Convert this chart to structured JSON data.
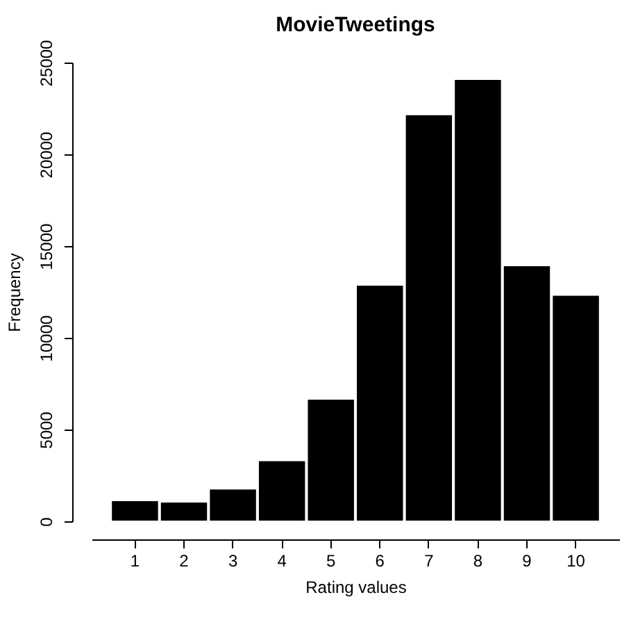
{
  "chart_data": {
    "type": "bar",
    "title": "MovieTweetings",
    "xlabel": "Rating values",
    "ylabel": "Frequency",
    "categories": [
      "1",
      "2",
      "3",
      "4",
      "5",
      "6",
      "7",
      "8",
      "9",
      "10"
    ],
    "values": [
      1140,
      1060,
      1770,
      3310,
      6670,
      12880,
      22170,
      24090,
      13940,
      12330
    ],
    "color": "#000000",
    "ylim": [
      0,
      25000
    ],
    "yticks": [
      0,
      5000,
      10000,
      15000,
      20000,
      25000
    ],
    "grid": false
  }
}
